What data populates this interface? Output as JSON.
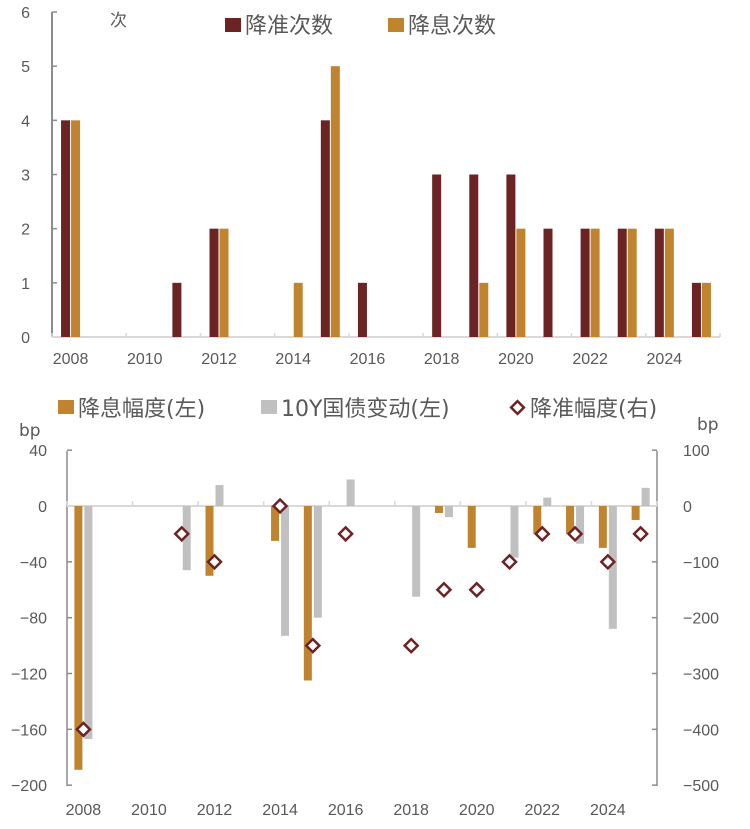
{
  "colors": {
    "rrr_cut": "#6B2324",
    "rate_cut": "#C0842F",
    "bond_change": "#C0C0C0",
    "diamond": "#6B2324",
    "axis": "#8C8C8C",
    "gridline": "#D9D9D9",
    "text": "#595959"
  },
  "chart_data": [
    {
      "type": "bar",
      "title": "",
      "ylabel": "次",
      "xlabel": "",
      "ylim": [
        0,
        6
      ],
      "yticks": [
        0,
        1,
        2,
        3,
        4,
        5,
        6
      ],
      "xtick_labels": [
        "2008",
        "2010",
        "2012",
        "2014",
        "2016",
        "2018",
        "2020",
        "2022",
        "2024"
      ],
      "categories": [
        "2008",
        "2009",
        "2010",
        "2011",
        "2012",
        "2013",
        "2014",
        "2015",
        "2016",
        "2017",
        "2018",
        "2019",
        "2020",
        "2021",
        "2022",
        "2023",
        "2024",
        "2025"
      ],
      "legend_position": "top-right",
      "series": [
        {
          "name": "降准次数",
          "color": "#6B2324",
          "values": [
            4,
            0,
            0,
            1,
            2,
            0,
            0,
            4,
            1,
            0,
            3,
            3,
            3,
            2,
            2,
            2,
            2,
            1
          ]
        },
        {
          "name": "降息次数",
          "color": "#C0842F",
          "values": [
            4,
            0,
            0,
            0,
            2,
            0,
            1,
            5,
            0,
            0,
            0,
            1,
            2,
            0,
            2,
            2,
            2,
            1
          ]
        }
      ]
    },
    {
      "type": "bar",
      "title": "",
      "ylabel": "bp",
      "y2label": "bp",
      "ylim": [
        -200,
        40
      ],
      "yticks": [
        40,
        0,
        -40,
        -80,
        -120,
        -160,
        -200
      ],
      "y2lim": [
        -500,
        100
      ],
      "y2ticks": [
        100,
        0,
        -100,
        -200,
        -300,
        -400,
        -500
      ],
      "xtick_labels": [
        "2008",
        "2010",
        "2012",
        "2014",
        "2016",
        "2018",
        "2020",
        "2022",
        "2024"
      ],
      "categories": [
        "2008",
        "2009",
        "2010",
        "2011",
        "2012",
        "2013",
        "2014",
        "2015",
        "2016",
        "2017",
        "2018",
        "2019",
        "2020",
        "2021",
        "2022",
        "2023",
        "2024",
        "2025"
      ],
      "legend_position": "top",
      "series": [
        {
          "name": "降息幅度(左)",
          "type": "bar",
          "axis": "left",
          "color": "#C0842F",
          "values": [
            -189,
            0,
            0,
            0,
            -50,
            0,
            -25,
            -125,
            0,
            0,
            0,
            -5,
            -30,
            0,
            -20,
            -20,
            -30,
            -10
          ]
        },
        {
          "name": "10Y国债变动(左)",
          "type": "bar",
          "axis": "left",
          "color": "#C0C0C0",
          "values": [
            -167,
            0,
            0,
            -46,
            15,
            0,
            -93,
            -80,
            19,
            0,
            -65,
            -8,
            0,
            -37,
            6,
            -27,
            -88,
            13
          ]
        },
        {
          "name": "降准幅度(右)",
          "type": "scatter",
          "marker": "diamond-open",
          "axis": "right",
          "color": "#6B2324",
          "values": [
            -400,
            null,
            null,
            -50,
            -100,
            null,
            0,
            -250,
            -50,
            null,
            -250,
            -150,
            -150,
            -100,
            -50,
            -50,
            -100,
            -50
          ]
        }
      ]
    }
  ],
  "top_chart": {
    "unit": "次",
    "legend": [
      {
        "label": "降准次数",
        "color": "#6B2324"
      },
      {
        "label": "降息次数",
        "color": "#C0842F"
      }
    ]
  },
  "bottom_chart": {
    "unit_left": "bp",
    "unit_right": "bp",
    "legend": [
      {
        "label": "降息幅度(左)",
        "color": "#C0842F",
        "marker": "square"
      },
      {
        "label": "10Y国债变动(左)",
        "color": "#C0C0C0",
        "marker": "square"
      },
      {
        "label": "降准幅度(右)",
        "color": "#6B2324",
        "marker": "diamond"
      }
    ]
  }
}
